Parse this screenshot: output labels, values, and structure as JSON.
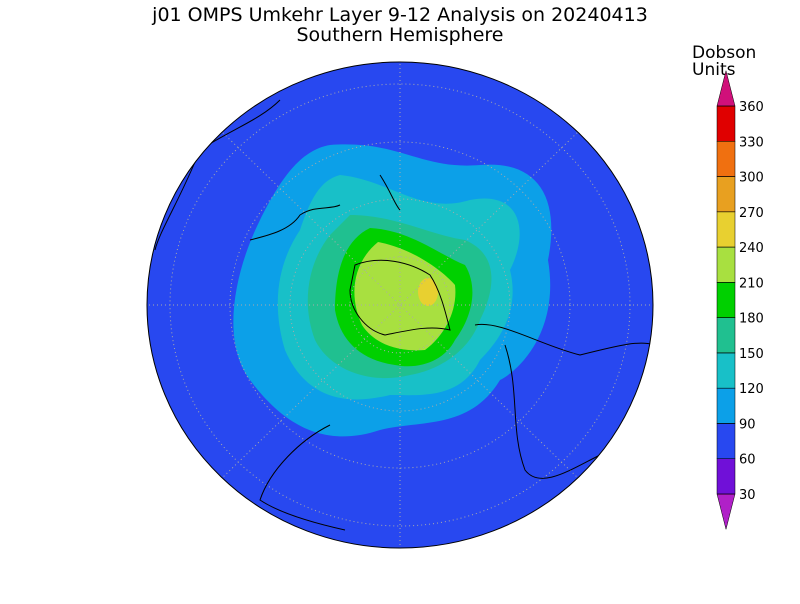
{
  "header": {
    "title": "j01 OMPS Umkehr Layer 9-12 Analysis on 20240413",
    "subtitle": "Southern Hemisphere"
  },
  "colorbar": {
    "label": [
      "Dobson",
      "Units"
    ],
    "ticks": [
      30,
      60,
      90,
      120,
      150,
      180,
      210,
      240,
      270,
      300,
      330,
      360
    ],
    "colors": [
      "#b020c8",
      "#7010d8",
      "#2848f0",
      "#0ca0e8",
      "#18c0c8",
      "#20c090",
      "#00d000",
      "#a8e040",
      "#e8d030",
      "#e8a020",
      "#f07010",
      "#e00000",
      "#d0107a"
    ]
  }
}
